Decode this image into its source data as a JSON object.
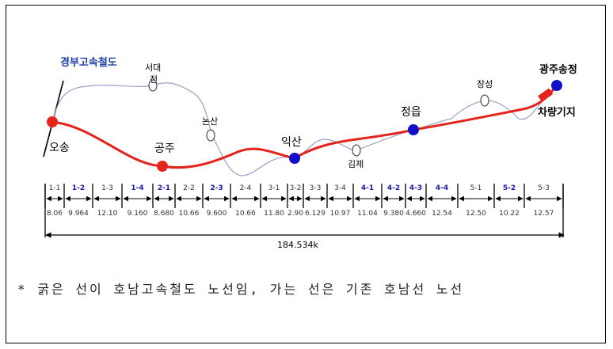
{
  "legend_label": "경부고속철도",
  "stations": {
    "osong": "오송",
    "gongju": "공주",
    "iksan": "익산",
    "jeongeup": "정읍",
    "gwangju": "광주송정",
    "depot": "차량기지",
    "seodaejeon_line1": "서대",
    "seodaejeon_line2": "전",
    "nonsan": "논산",
    "gimje": "김제",
    "jangseong": "장성"
  },
  "sections": [
    {
      "code": "1-1",
      "length": "8.06",
      "blue": false
    },
    {
      "code": "1-2",
      "length": "9.964",
      "blue": true
    },
    {
      "code": "1-3",
      "length": "12.10",
      "blue": false
    },
    {
      "code": "1-4",
      "length": "9.160",
      "blue": true
    },
    {
      "code": "2-1",
      "length": "8.680",
      "blue": true
    },
    {
      "code": "2-2",
      "length": "10.66",
      "blue": false
    },
    {
      "code": "2-3",
      "length": "9.600",
      "blue": true
    },
    {
      "code": "2-4",
      "length": "10.66",
      "blue": false
    },
    {
      "code": "3-1",
      "length": "11.80",
      "blue": false
    },
    {
      "code": "3-2",
      "length": "2.90",
      "blue": false
    },
    {
      "code": "3-3",
      "length": "6.129",
      "blue": false
    },
    {
      "code": "3-4",
      "length": "10.97",
      "blue": false
    },
    {
      "code": "4-1",
      "length": "11.04",
      "blue": true
    },
    {
      "code": "4-2",
      "length": "9.380",
      "blue": true
    },
    {
      "code": "4-3",
      "length": "4.660",
      "blue": true
    },
    {
      "code": "4-4",
      "length": "12.54",
      "blue": true
    },
    {
      "code": "5-1",
      "length": "12.50",
      "blue": false
    },
    {
      "code": "5-2",
      "length": "10.22",
      "blue": true
    },
    {
      "code": "5-3",
      "length": "12.57",
      "blue": false
    }
  ],
  "total_length": "184.534k",
  "note": "* 굵은 선이 호남고속철도 노선임, 가는 선은 기존 호남선 노선",
  "colors": {
    "new_line": "#e3231c",
    "old_line": "#9aa0c8",
    "blue_station": "#1010c8",
    "blue_code": "#1a1aa8",
    "legend_label": "#1c3fa8"
  }
}
